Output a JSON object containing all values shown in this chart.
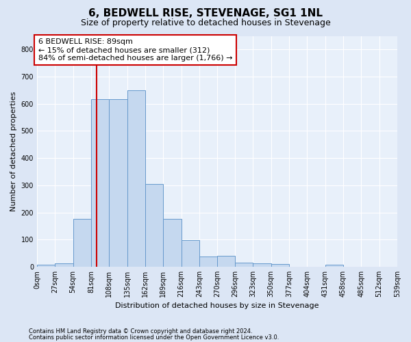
{
  "title": "6, BEDWELL RISE, STEVENAGE, SG1 1NL",
  "subtitle": "Size of property relative to detached houses in Stevenage",
  "xlabel": "Distribution of detached houses by size in Stevenage",
  "ylabel": "Number of detached properties",
  "bins": [
    0,
    27,
    54,
    81,
    108,
    135,
    162,
    189,
    216,
    243,
    270,
    296,
    323,
    350,
    377,
    404,
    431,
    458,
    485,
    512,
    539
  ],
  "bar_heights": [
    7,
    12,
    175,
    618,
    618,
    650,
    305,
    175,
    97,
    38,
    40,
    14,
    12,
    10,
    0,
    0,
    8,
    0,
    0,
    0
  ],
  "bar_color": "#c5d8ef",
  "bar_edge_color": "#6699cc",
  "property_size": 89,
  "vline_color": "#cc0000",
  "annotation_text": "6 BEDWELL RISE: 89sqm\n← 15% of detached houses are smaller (312)\n84% of semi-detached houses are larger (1,766) →",
  "annotation_box_color": "#ffffff",
  "annotation_box_edge": "#cc0000",
  "ylim": [
    0,
    850
  ],
  "yticks": [
    0,
    100,
    200,
    300,
    400,
    500,
    600,
    700,
    800
  ],
  "footer1": "Contains HM Land Registry data © Crown copyright and database right 2024.",
  "footer2": "Contains public sector information licensed under the Open Government Licence v3.0.",
  "bg_color": "#dce6f5",
  "plot_bg_color": "#e8f0fa",
  "title_fontsize": 11,
  "subtitle_fontsize": 9,
  "annotation_fontsize": 8,
  "ylabel_fontsize": 8,
  "xlabel_fontsize": 8,
  "tick_fontsize": 7,
  "footer_fontsize": 6
}
